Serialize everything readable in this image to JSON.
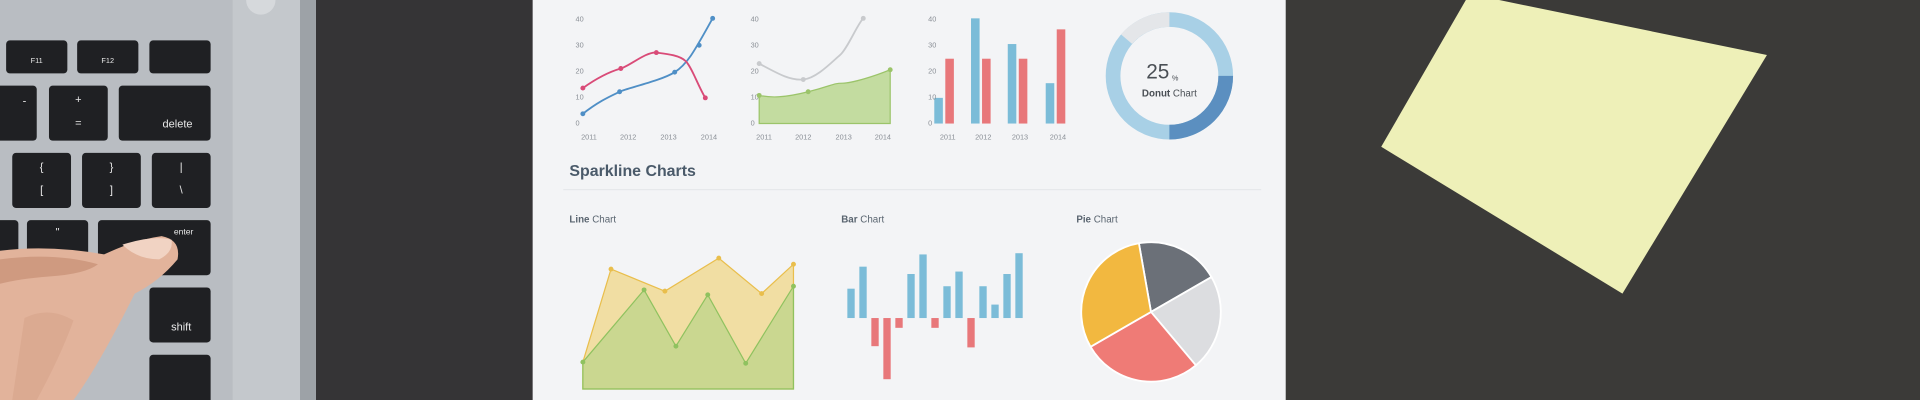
{
  "laptop_keys": {
    "f11": "F11",
    "f12": "F12",
    "minus": "-",
    "plus": "+",
    "equals": "=",
    "delete": "delete",
    "brace_open": "{",
    "bracket_open": "[",
    "brace_close": "}",
    "bracket_close": "]",
    "pipe": "|",
    "backslash": "\\",
    "quote": "\"",
    "apostrophe": "'",
    "enter": "enter",
    "shift": "shift"
  },
  "paper": {
    "top_charts": {
      "y_ticks": [
        "40",
        "30",
        "20",
        "10",
        "0"
      ],
      "years": [
        "2011",
        "2012",
        "2013",
        "2014"
      ],
      "donut": {
        "value": "25",
        "unit": "%",
        "label_bold": "Donut",
        "label": "Chart"
      }
    },
    "section_title": "Sparkline Charts",
    "sparklines": [
      {
        "bold": "Line",
        "label": "Chart"
      },
      {
        "bold": "Bar",
        "label": "Chart"
      },
      {
        "bold": "Pie",
        "label": "Chart"
      }
    ]
  }
}
